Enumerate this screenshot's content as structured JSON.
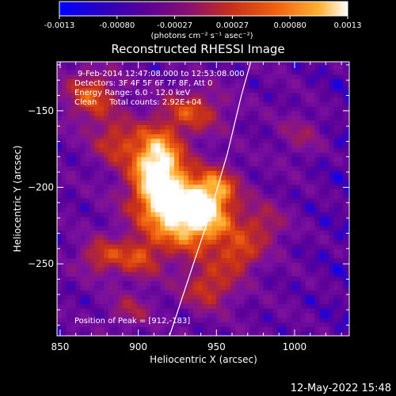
{
  "colorbar": {
    "ticks": [
      "-0.0013",
      "-0.00080",
      "-0.00027",
      "0.00027",
      "0.00080",
      "0.0013"
    ],
    "unit_label": "(photons cm⁻² s⁻¹ asec⁻²)"
  },
  "chart_data": {
    "type": "heatmap",
    "title": "Reconstructed RHESSI Image",
    "xlabel": "Heliocentric X (arcsec)",
    "ylabel": "Heliocentric Y (arcsec)",
    "xlim": [
      848,
      1035
    ],
    "ylim": [
      -297,
      -118
    ],
    "x_ticks": [
      850,
      900,
      950,
      1000
    ],
    "y_ticks": [
      -150,
      -200,
      -250
    ],
    "color_range": [
      -0.0013,
      0.0013
    ],
    "colormap": [
      "#0000ff",
      "#5a0098",
      "#7a10a0",
      "#9a1a60",
      "#c83018",
      "#f06010",
      "#ffb030",
      "#ffffff"
    ],
    "annotations": [
      "9-Feb-2014 12:47:08.000 to 12:53:08.000",
      "Detectors: 3F 4F 5F 6F 7F 8F, Att 0",
      "Energy Range: 6.0 - 12.0 keV",
      "Clean     Total counts: 2.92E+04"
    ],
    "peak_label": "Position of Peak = [912,-183]",
    "peak": [
      912,
      -183
    ],
    "limb_curve": [
      [
        920,
        -297
      ],
      [
        932,
        -260
      ],
      [
        945,
        -220
      ],
      [
        957,
        -178
      ],
      [
        966,
        -140
      ],
      [
        972,
        -118
      ]
    ],
    "sources": [
      {
        "x": 912,
        "y": -183,
        "amp": 1.0,
        "sx": 12,
        "sy": 16
      },
      {
        "x": 922,
        "y": -210,
        "amp": 0.85,
        "sx": 18,
        "sy": 14
      },
      {
        "x": 940,
        "y": -225,
        "amp": 0.7,
        "sx": 18,
        "sy": 14
      },
      {
        "x": 950,
        "y": -200,
        "amp": 0.55,
        "sx": 10,
        "sy": 10
      },
      {
        "x": 900,
        "y": -245,
        "amp": 0.5,
        "sx": 12,
        "sy": 10
      },
      {
        "x": 945,
        "y": -265,
        "amp": 0.5,
        "sx": 12,
        "sy": 10
      },
      {
        "x": 870,
        "y": -140,
        "amp": 0.55,
        "sx": 12,
        "sy": 12
      },
      {
        "x": 935,
        "y": -150,
        "amp": 0.5,
        "sx": 14,
        "sy": 10
      },
      {
        "x": 885,
        "y": -170,
        "amp": 0.45,
        "sx": 10,
        "sy": 10
      },
      {
        "x": 875,
        "y": -245,
        "amp": 0.45,
        "sx": 9,
        "sy": 8
      },
      {
        "x": 980,
        "y": -225,
        "amp": 0.35,
        "sx": 10,
        "sy": 10
      },
      {
        "x": 965,
        "y": -245,
        "amp": 0.45,
        "sx": 9,
        "sy": 8
      },
      {
        "x": 1005,
        "y": -165,
        "amp": 0.25,
        "sx": 10,
        "sy": 10
      },
      {
        "x": 895,
        "y": -280,
        "amp": 0.3,
        "sx": 10,
        "sy": 8
      }
    ]
  },
  "footer": {
    "timestamp": "12-May-2022 15:48"
  }
}
